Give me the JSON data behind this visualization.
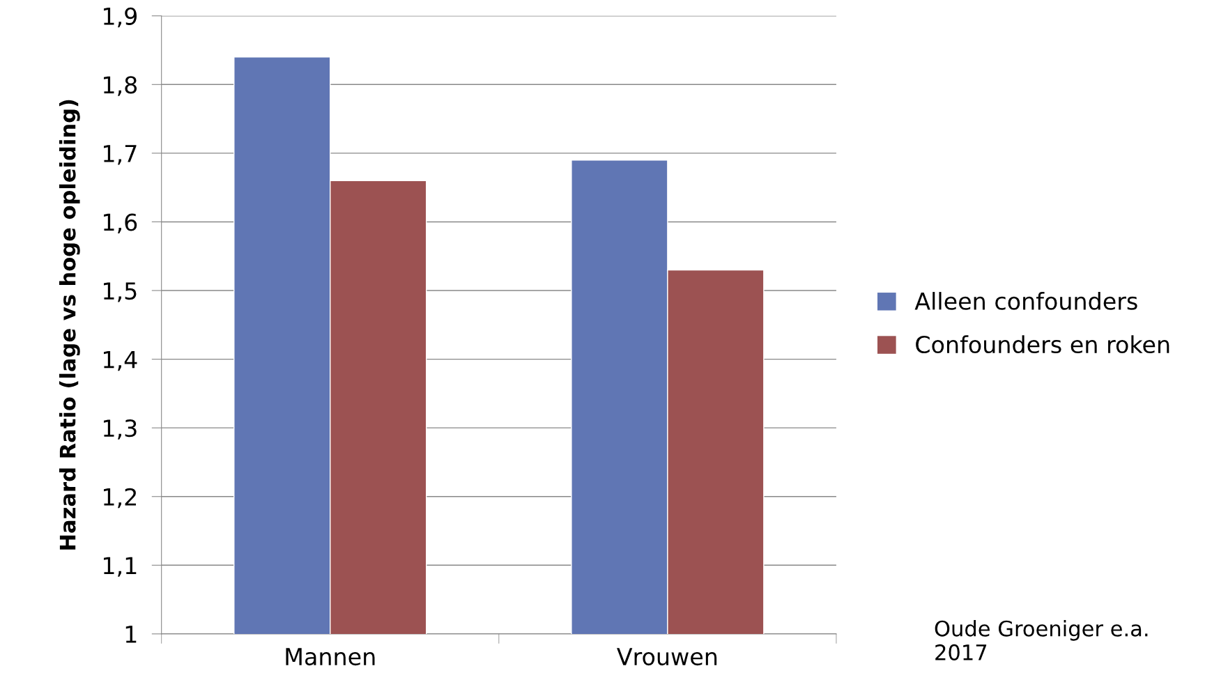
{
  "chart_data": {
    "type": "bar",
    "ylabel": "Hazard Ratio (lage vs hoge opleiding)",
    "categories": [
      "Mannen",
      "Vrouwen"
    ],
    "series": [
      {
        "name": "Alleen confounders",
        "color": "#6076b4",
        "values": [
          1.84,
          1.69
        ]
      },
      {
        "name": "Confounders en roken",
        "color": "#9c5252",
        "values": [
          1.66,
          1.53
        ]
      }
    ],
    "ylim": [
      1,
      1.9
    ],
    "yticks": [
      1,
      {
        "value": 1.1,
        "label": "1,1"
      },
      {
        "value": 1.2,
        "label": "1,2"
      },
      {
        "value": 1.3,
        "label": "1,3"
      },
      {
        "value": 1.4,
        "label": "1,4"
      },
      {
        "value": 1.5,
        "label": "1,5"
      },
      {
        "value": 1.6,
        "label": "1,6"
      },
      {
        "value": 1.7,
        "label": "1,7"
      },
      {
        "value": 1.8,
        "label": "1,8"
      },
      {
        "value": 1.9,
        "label": "1,9"
      }
    ],
    "grid": "y",
    "legend": "right",
    "annotations": [
      "Oude Groeniger e.a.\n2017"
    ]
  }
}
